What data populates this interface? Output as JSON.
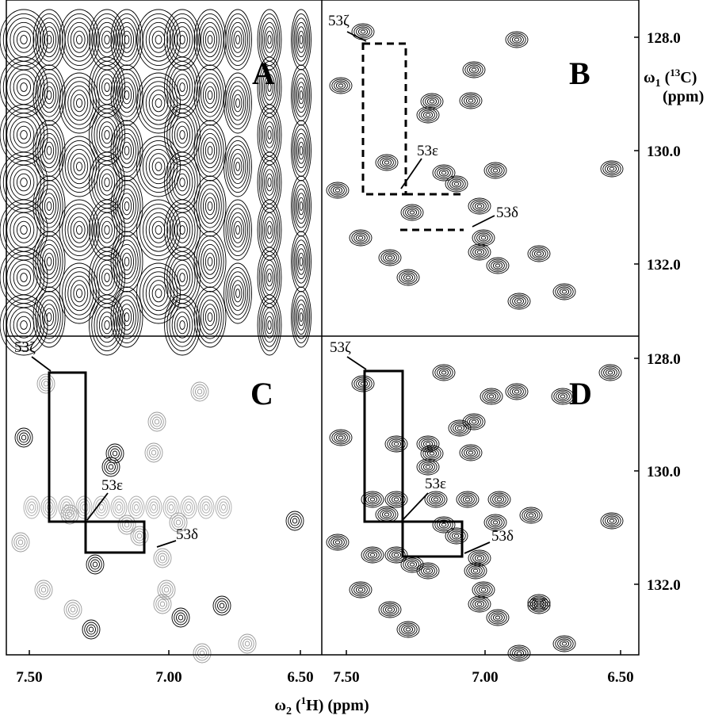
{
  "panels": [
    {
      "label": "A"
    },
    {
      "label": "B",
      "annotations": [
        "53ζ",
        "53ε",
        "53δ"
      ]
    },
    {
      "label": "C",
      "annotations": [
        "53ζ",
        "53ε",
        "53δ"
      ]
    },
    {
      "label": "D",
      "annotations": [
        "53ζ",
        "53ε",
        "53δ"
      ]
    }
  ],
  "y_axis": {
    "symbol": "ω",
    "subscript": "1",
    "open": " (",
    "superscript": "13",
    "nucleus": "C)",
    "unit": "(ppm)",
    "ticks_top": [
      "128.0",
      "130.0",
      "132.0"
    ],
    "ticks_bottom": [
      "128.0",
      "130.0",
      "132.0"
    ]
  },
  "x_axis": {
    "symbol": "ω",
    "subscript": "2",
    "open": " (",
    "superscript": "1",
    "nucleus": "H) (ppm)",
    "ticks_left": [
      "7.50",
      "7.00",
      "6.50"
    ],
    "ticks_right": [
      "7.50",
      "7.00",
      "6.50"
    ]
  }
}
